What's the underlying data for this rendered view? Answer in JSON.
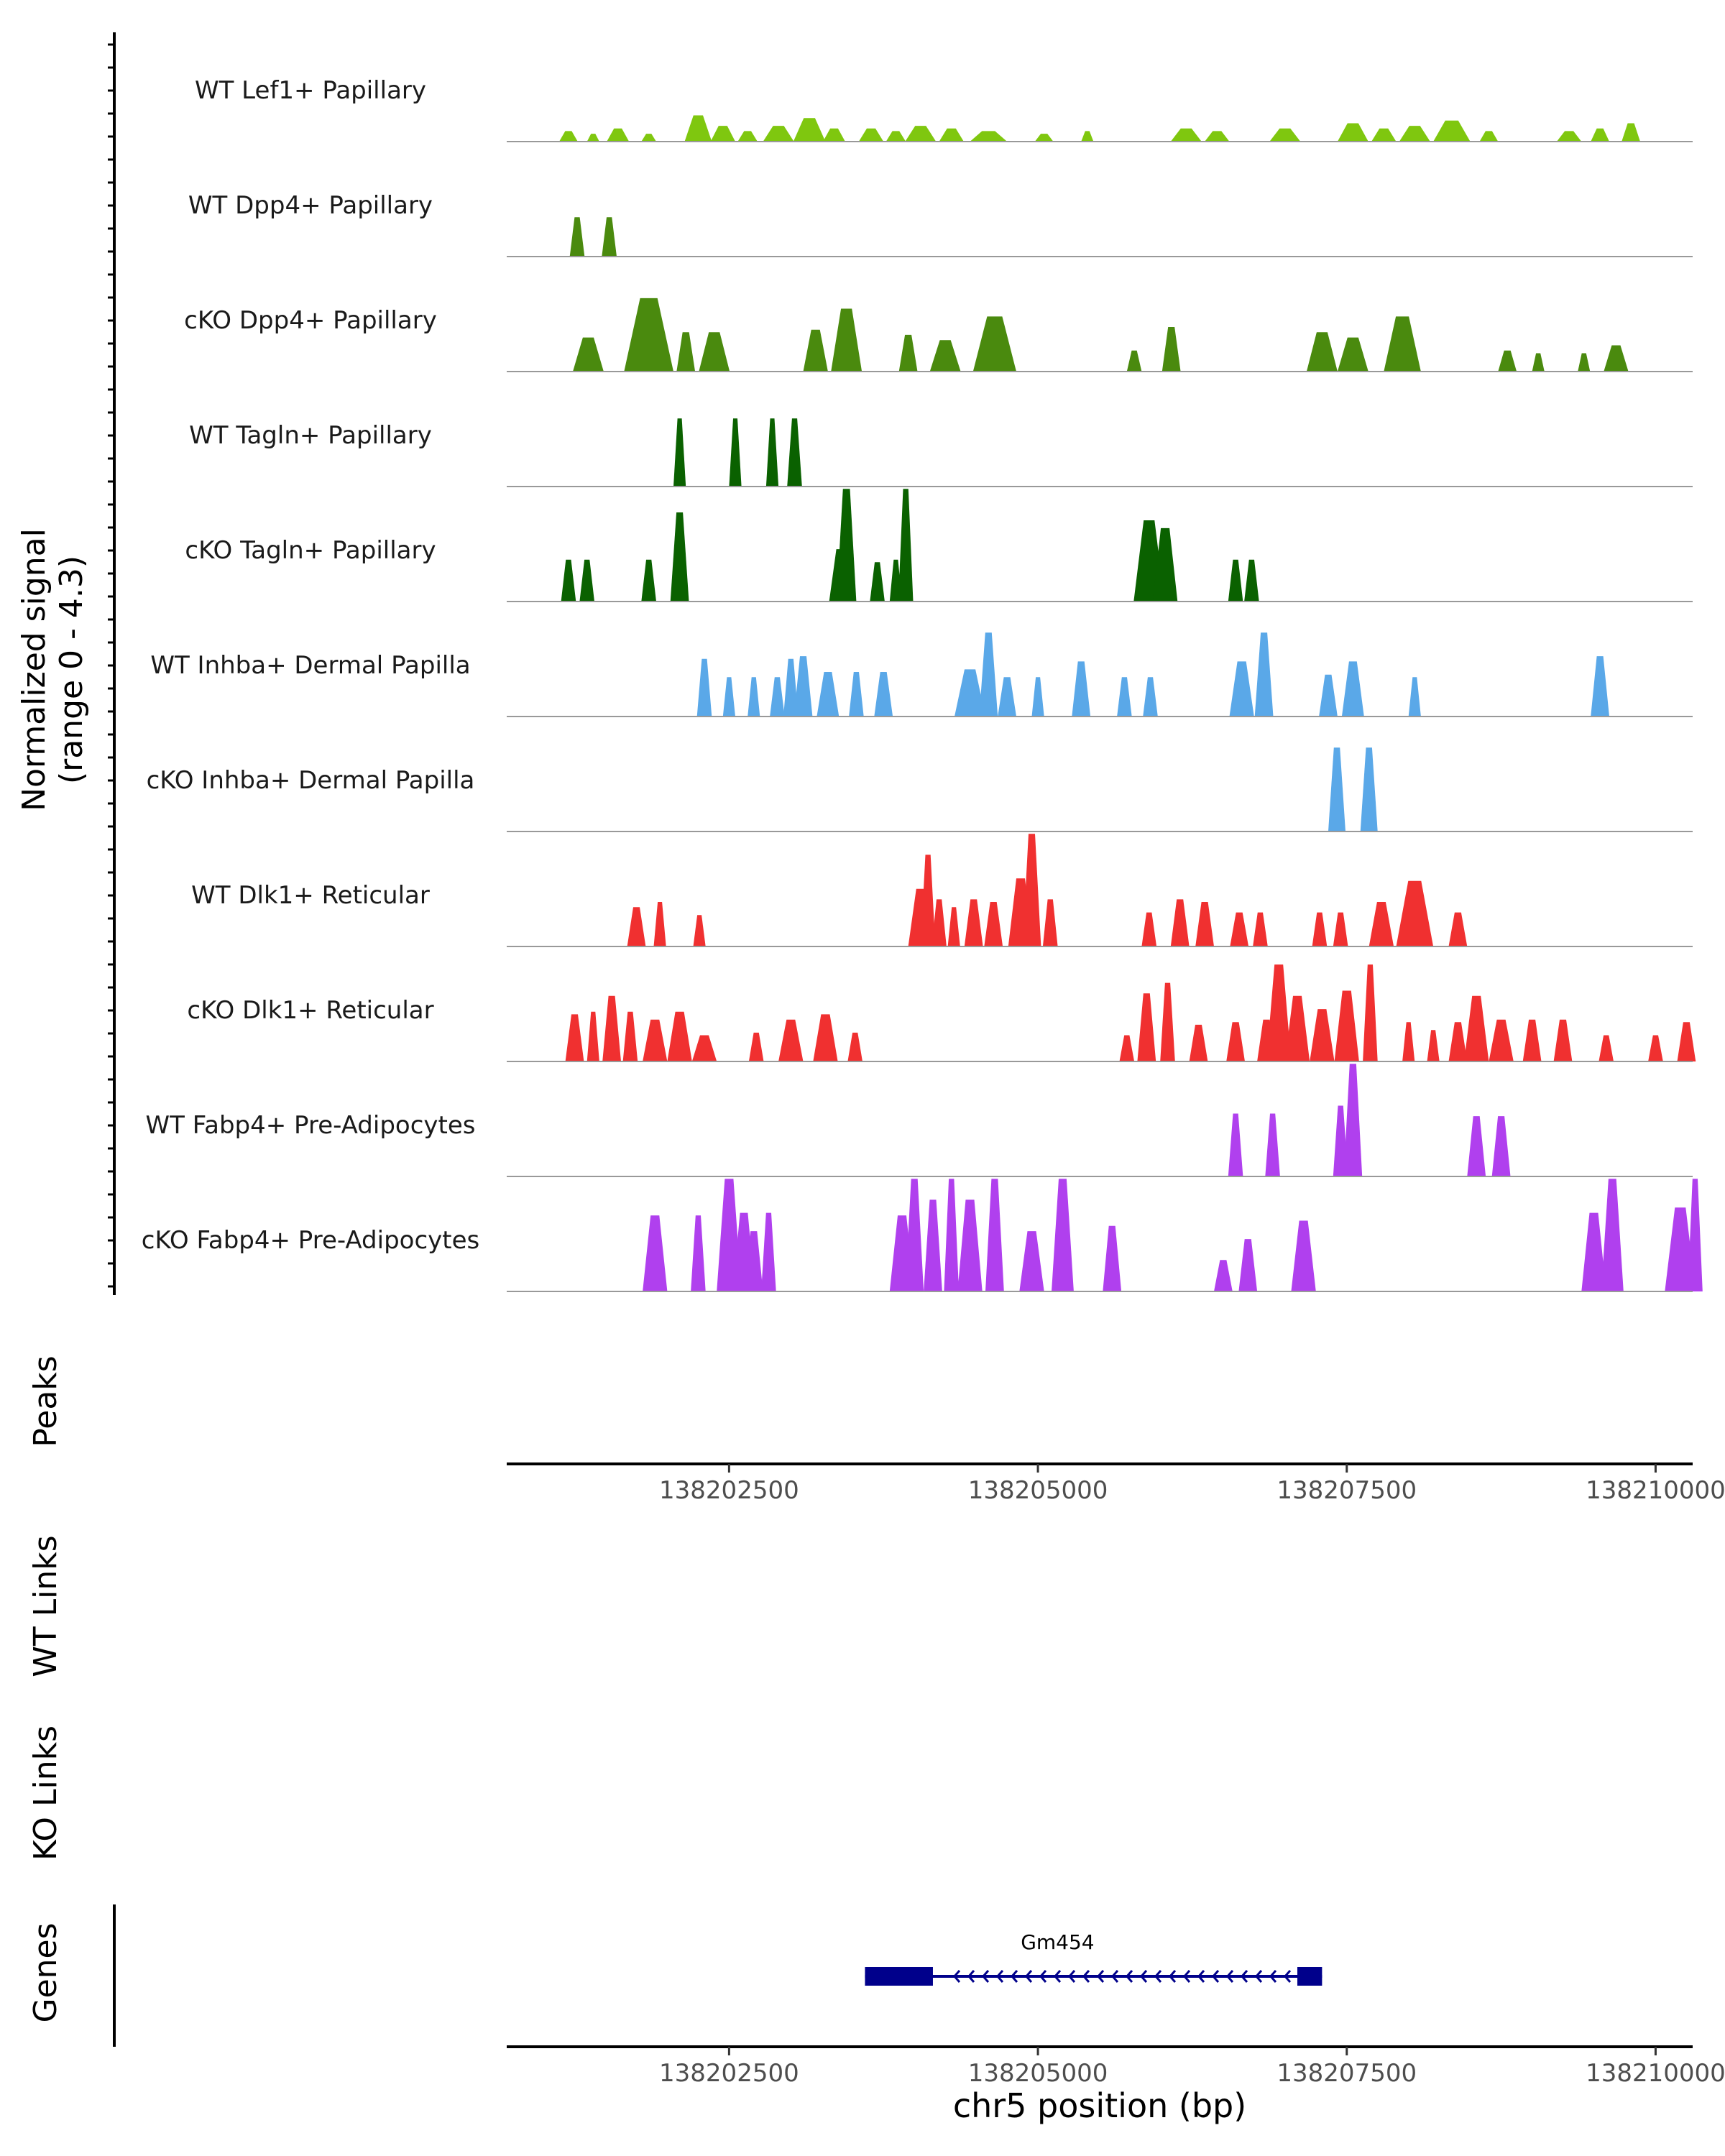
{
  "chart_data": {
    "type": "area",
    "title": "",
    "chromosome": "chr5",
    "xlabel": "chr5 position (bp)",
    "xlim": [
      138200700,
      138210300
    ],
    "x_ticks": [
      138202500,
      138205000,
      138207500,
      138210000
    ],
    "x_tick_labels": [
      "138202500",
      "138205000",
      "138207500",
      "138210000"
    ],
    "ylabel": "Normalized signal",
    "ylabel_range": "(range 0 - 4.3)",
    "ylim": [
      0,
      4.3
    ],
    "colors": {
      "lef1": "#7FC70F",
      "dpp4": "#4A8A0E",
      "tagln": "#0A6100",
      "inhba": "#5AA8E8",
      "dlk1": "#F03030",
      "fabp4": "#B040EE",
      "gene": "#00008B",
      "baseline": "#999999",
      "axis": "#000000"
    },
    "series": [
      {
        "name": "WT Lef1+ Papillary",
        "color_key": "lef1",
        "peaks": [
          [
            138201200,
            0.4,
            150
          ],
          [
            138201400,
            0.3,
            100
          ],
          [
            138201600,
            0.5,
            180
          ],
          [
            138201850,
            0.3,
            120
          ],
          [
            138202250,
            1.0,
            220
          ],
          [
            138202450,
            0.6,
            200
          ],
          [
            138202650,
            0.4,
            160
          ],
          [
            138202900,
            0.6,
            250
          ],
          [
            138203150,
            0.9,
            260
          ],
          [
            138203350,
            0.5,
            180
          ],
          [
            138203650,
            0.5,
            200
          ],
          [
            138203850,
            0.4,
            160
          ],
          [
            138204050,
            0.6,
            250
          ],
          [
            138204300,
            0.5,
            200
          ],
          [
            138204600,
            0.4,
            300
          ],
          [
            138205050,
            0.3,
            150
          ],
          [
            138205400,
            0.4,
            100
          ],
          [
            138206200,
            0.5,
            250
          ],
          [
            138206450,
            0.4,
            200
          ],
          [
            138207000,
            0.5,
            250
          ],
          [
            138207550,
            0.7,
            250
          ],
          [
            138207800,
            0.5,
            200
          ],
          [
            138208050,
            0.6,
            250
          ],
          [
            138208350,
            0.8,
            300
          ],
          [
            138208650,
            0.4,
            150
          ],
          [
            138209300,
            0.4,
            200
          ],
          [
            138209550,
            0.5,
            150
          ],
          [
            138209800,
            0.7,
            150
          ]
        ]
      },
      {
        "name": "WT Dpp4+ Papillary",
        "color_key": "dpp4",
        "peaks": [
          [
            138201270,
            1.5,
            120
          ],
          [
            138201530,
            1.5,
            120
          ]
        ]
      },
      {
        "name": "cKO Dpp4+ Papillary",
        "color_key": "dpp4",
        "peaks": [
          [
            138201360,
            1.3,
            250
          ],
          [
            138201850,
            2.8,
            400
          ],
          [
            138202150,
            1.5,
            150
          ],
          [
            138202380,
            1.5,
            250
          ],
          [
            138203200,
            1.6,
            200
          ],
          [
            138203450,
            2.4,
            250
          ],
          [
            138203950,
            1.4,
            150
          ],
          [
            138204250,
            1.2,
            250
          ],
          [
            138204650,
            2.1,
            350
          ],
          [
            138205780,
            0.8,
            120
          ],
          [
            138206080,
            1.7,
            150
          ],
          [
            138207300,
            1.5,
            250
          ],
          [
            138207550,
            1.3,
            250
          ],
          [
            138207950,
            2.1,
            300
          ],
          [
            138208800,
            0.8,
            150
          ],
          [
            138209050,
            0.7,
            100
          ],
          [
            138209420,
            0.7,
            100
          ],
          [
            138209680,
            1.0,
            200
          ]
        ]
      },
      {
        "name": "WT Tagln+ Papillary",
        "color_key": "tagln",
        "peaks": [
          [
            138202100,
            2.6,
            100
          ],
          [
            138202550,
            2.6,
            100
          ],
          [
            138202850,
            2.6,
            100
          ],
          [
            138203030,
            2.6,
            120
          ]
        ]
      },
      {
        "name": "cKO Tagln+ Papillary",
        "color_key": "tagln",
        "peaks": [
          [
            138201200,
            1.6,
            120
          ],
          [
            138201350,
            1.6,
            120
          ],
          [
            138201850,
            1.6,
            120
          ],
          [
            138202100,
            3.4,
            150
          ],
          [
            138203400,
            2.0,
            180
          ],
          [
            138203450,
            4.3,
            160
          ],
          [
            138203700,
            1.5,
            120
          ],
          [
            138203850,
            1.6,
            100
          ],
          [
            138203930,
            4.3,
            120
          ],
          [
            138205900,
            3.1,
            250
          ],
          [
            138206030,
            2.8,
            200
          ],
          [
            138206600,
            1.6,
            120
          ],
          [
            138206730,
            1.6,
            120
          ]
        ]
      },
      {
        "name": "WT Inhba+ Dermal Papilla",
        "color_key": "inhba",
        "peaks": [
          [
            138202300,
            2.2,
            120
          ],
          [
            138202500,
            1.5,
            100
          ],
          [
            138202700,
            1.5,
            100
          ],
          [
            138202890,
            1.5,
            120
          ],
          [
            138203000,
            2.2,
            120
          ],
          [
            138203100,
            2.3,
            150
          ],
          [
            138203300,
            1.7,
            180
          ],
          [
            138203530,
            1.7,
            120
          ],
          [
            138203750,
            1.7,
            150
          ],
          [
            138204450,
            1.8,
            250
          ],
          [
            138204600,
            3.2,
            150
          ],
          [
            138204750,
            1.5,
            150
          ],
          [
            138205000,
            1.5,
            100
          ],
          [
            138205350,
            2.1,
            150
          ],
          [
            138205700,
            1.5,
            120
          ],
          [
            138205910,
            1.5,
            120
          ],
          [
            138206650,
            2.1,
            200
          ],
          [
            138206830,
            3.2,
            150
          ],
          [
            138207350,
            1.6,
            150
          ],
          [
            138207550,
            2.1,
            180
          ],
          [
            138208050,
            1.5,
            100
          ],
          [
            138209550,
            2.3,
            150
          ]
        ]
      },
      {
        "name": "cKO Inhba+ Dermal Papilla",
        "color_key": "inhba",
        "peaks": [
          [
            138207420,
            3.2,
            140
          ],
          [
            138207680,
            3.2,
            140
          ]
        ]
      },
      {
        "name": "WT Dlk1+ Reticular",
        "color_key": "dlk1",
        "peaks": [
          [
            138201750,
            1.5,
            150
          ],
          [
            138201940,
            1.7,
            100
          ],
          [
            138202260,
            1.2,
            100
          ],
          [
            138204050,
            2.2,
            200
          ],
          [
            138204110,
            3.5,
            120
          ],
          [
            138204200,
            1.8,
            120
          ],
          [
            138204320,
            1.5,
            100
          ],
          [
            138204480,
            1.8,
            150
          ],
          [
            138204640,
            1.7,
            150
          ],
          [
            138204860,
            2.6,
            200
          ],
          [
            138204950,
            4.3,
            150
          ],
          [
            138205100,
            1.8,
            120
          ],
          [
            138205900,
            1.3,
            120
          ],
          [
            138206150,
            1.8,
            150
          ],
          [
            138206350,
            1.7,
            150
          ],
          [
            138206630,
            1.3,
            150
          ],
          [
            138206800,
            1.3,
            120
          ],
          [
            138207280,
            1.3,
            120
          ],
          [
            138207450,
            1.3,
            120
          ],
          [
            138207780,
            1.7,
            200
          ],
          [
            138208050,
            2.5,
            300
          ],
          [
            138208400,
            1.3,
            150
          ]
        ]
      },
      {
        "name": "cKO Dlk1+ Reticular",
        "color_key": "dlk1",
        "peaks": [
          [
            138201250,
            1.8,
            150
          ],
          [
            138201400,
            1.9,
            100
          ],
          [
            138201550,
            2.5,
            150
          ],
          [
            138201700,
            1.9,
            120
          ],
          [
            138201900,
            1.6,
            200
          ],
          [
            138202100,
            1.9,
            200
          ],
          [
            138202300,
            1.0,
            200
          ],
          [
            138202720,
            1.1,
            120
          ],
          [
            138203000,
            1.6,
            200
          ],
          [
            138203280,
            1.8,
            200
          ],
          [
            138203520,
            1.1,
            120
          ],
          [
            138205720,
            1.0,
            120
          ],
          [
            138205880,
            2.6,
            150
          ],
          [
            138206050,
            3.0,
            120
          ],
          [
            138206300,
            1.4,
            150
          ],
          [
            138206600,
            1.5,
            150
          ],
          [
            138206850,
            1.6,
            150
          ],
          [
            138206950,
            3.7,
            200
          ],
          [
            138207100,
            2.5,
            200
          ],
          [
            138207300,
            2.0,
            200
          ],
          [
            138207500,
            2.7,
            200
          ],
          [
            138207690,
            3.7,
            120
          ],
          [
            138208000,
            1.5,
            100
          ],
          [
            138208200,
            1.2,
            100
          ],
          [
            138208400,
            1.5,
            150
          ],
          [
            138208550,
            2.5,
            200
          ],
          [
            138208750,
            1.6,
            200
          ],
          [
            138209000,
            1.6,
            150
          ],
          [
            138209250,
            1.6,
            150
          ],
          [
            138209600,
            1.0,
            120
          ],
          [
            138210000,
            1.0,
            120
          ],
          [
            138210250,
            1.5,
            150
          ]
        ]
      },
      {
        "name": "WT Fabp4+ Pre-Adipocytes",
        "color_key": "fabp4",
        "peaks": [
          [
            138206600,
            2.4,
            120
          ],
          [
            138206900,
            2.4,
            120
          ],
          [
            138207450,
            2.7,
            120
          ],
          [
            138207550,
            4.3,
            150
          ],
          [
            138208550,
            2.3,
            150
          ],
          [
            138208750,
            2.3,
            150
          ]
        ]
      },
      {
        "name": "cKO Fabp4+ Pre-Adipocytes",
        "color_key": "fabp4",
        "peaks": [
          [
            138201900,
            2.9,
            200
          ],
          [
            138202250,
            2.9,
            120
          ],
          [
            138202500,
            4.3,
            200
          ],
          [
            138202620,
            3.0,
            180
          ],
          [
            138202700,
            2.3,
            150
          ],
          [
            138202820,
            3.0,
            120
          ],
          [
            138203900,
            2.9,
            200
          ],
          [
            138204000,
            4.3,
            150
          ],
          [
            138204150,
            3.5,
            150
          ],
          [
            138204300,
            4.3,
            120
          ],
          [
            138204450,
            3.5,
            200
          ],
          [
            138204650,
            4.3,
            150
          ],
          [
            138204950,
            2.3,
            200
          ],
          [
            138205200,
            4.3,
            180
          ],
          [
            138205600,
            2.5,
            150
          ],
          [
            138206500,
            1.2,
            150
          ],
          [
            138206700,
            2.0,
            150
          ],
          [
            138207150,
            2.7,
            200
          ],
          [
            138209500,
            3.0,
            200
          ],
          [
            138209650,
            4.3,
            180
          ],
          [
            138210200,
            3.2,
            250
          ],
          [
            138210320,
            4.3,
            120
          ]
        ]
      }
    ],
    "empty_tracks": [
      "Peaks",
      "WT Links",
      "KO Links"
    ],
    "genes": [
      {
        "name": "Gm454",
        "start": 138203600,
        "end": 138207300,
        "strand": "-",
        "exons": [
          [
            138203600,
            138204150
          ],
          [
            138207100,
            138207300
          ]
        ]
      }
    ]
  },
  "labels": {
    "peaks": "Peaks",
    "wt_links": "WT Links",
    "ko_links": "KO Links",
    "genes": "Genes"
  }
}
